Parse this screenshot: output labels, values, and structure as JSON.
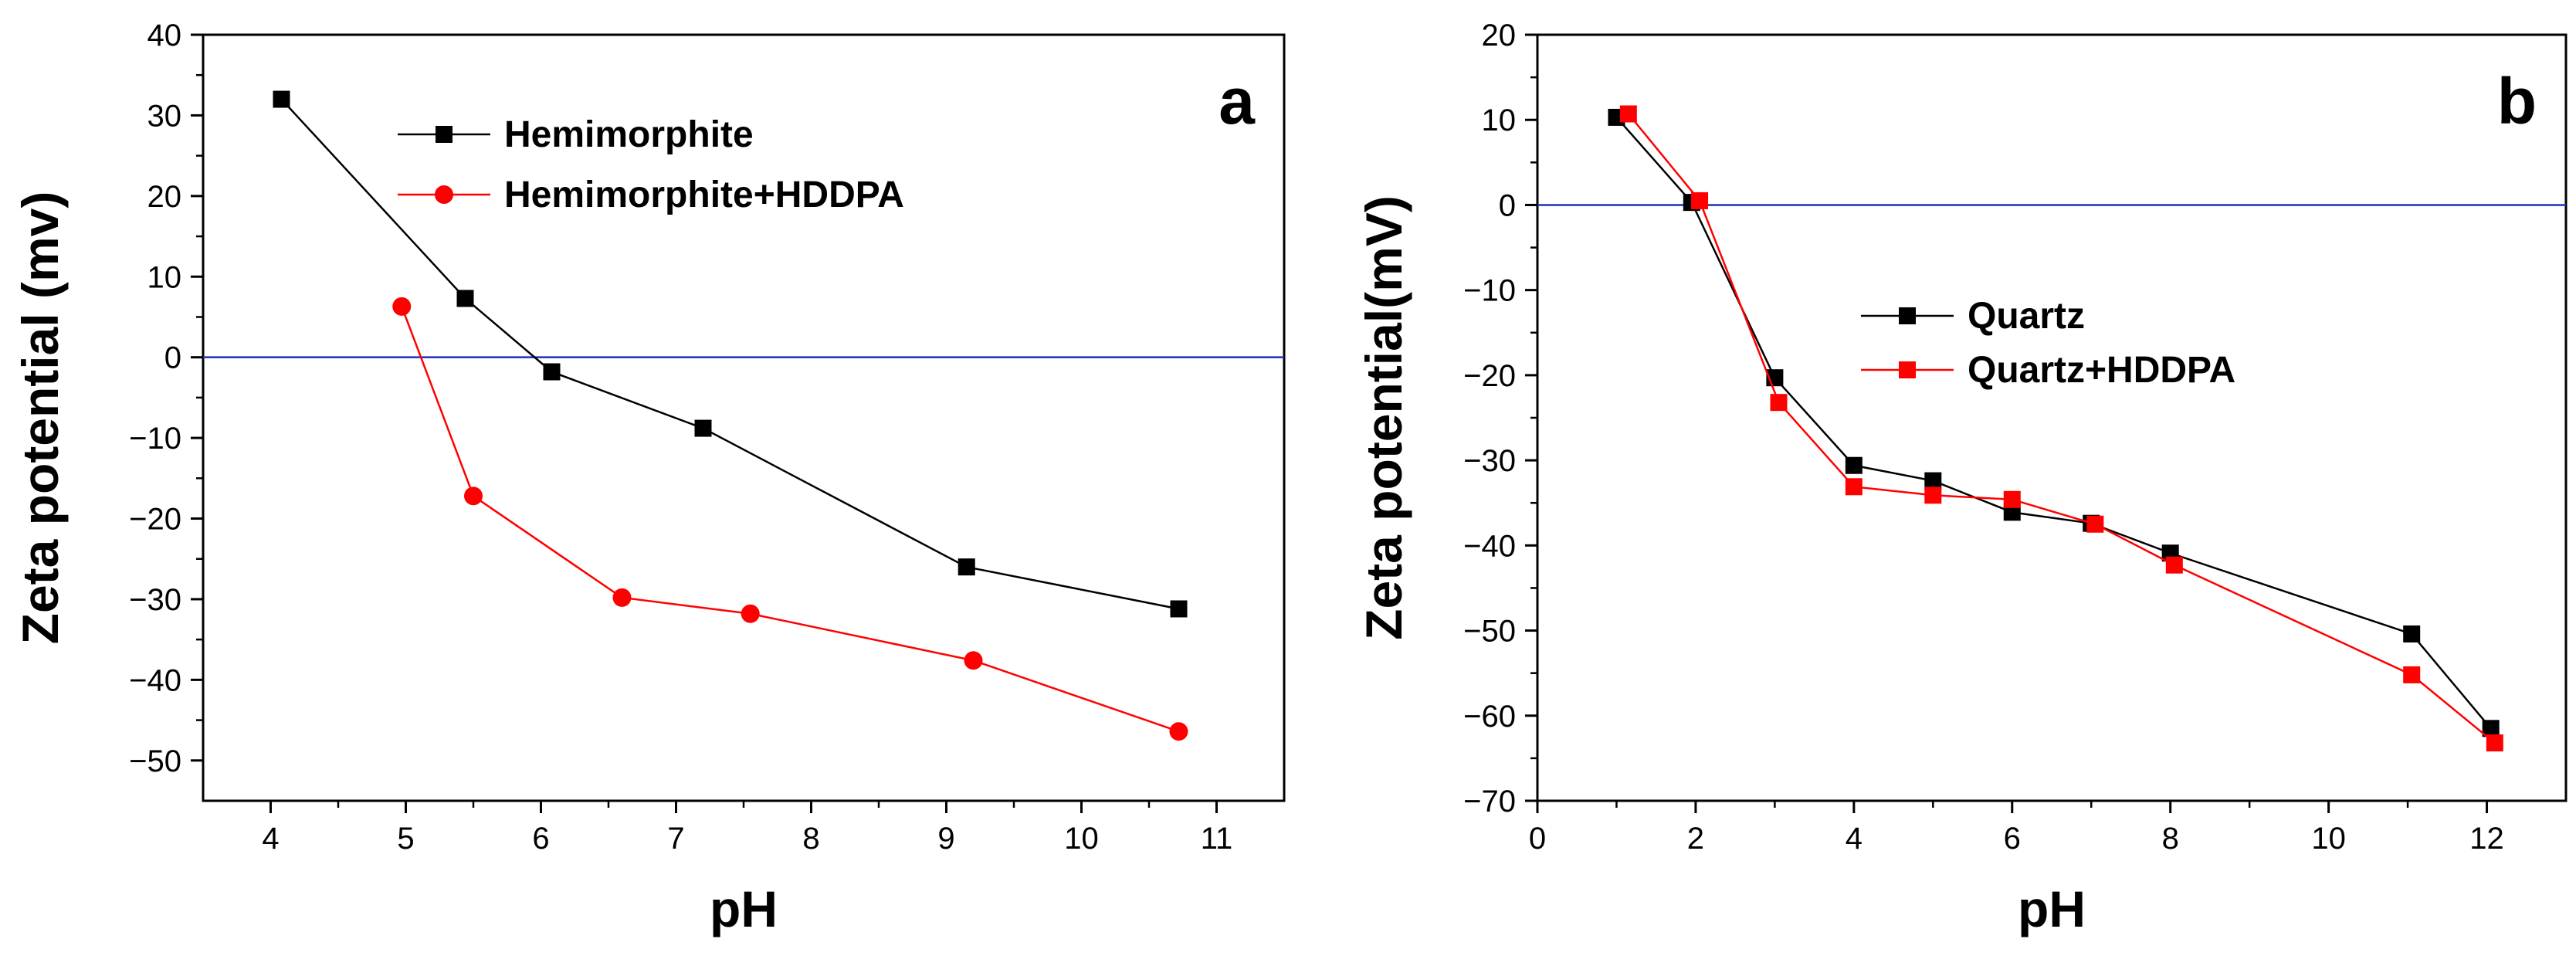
{
  "chart_data": [
    {
      "type": "line",
      "panel_label": "a",
      "xlabel": "pH",
      "ylabel": "Zeta potential (mv)",
      "xlim": [
        3.5,
        11.5
      ],
      "ylim": [
        -55,
        40
      ],
      "xticks": [
        4,
        5,
        6,
        7,
        8,
        9,
        10,
        11
      ],
      "yticks": [
        40,
        30,
        20,
        10,
        0,
        -10,
        -20,
        -30,
        -40,
        -50
      ],
      "reference_line": {
        "y": 0,
        "color": "#1f2fbf"
      },
      "legend_position": "top-center",
      "grid": false,
      "series": [
        {
          "name": "Hemimorphite",
          "color": "#000000",
          "marker": "square",
          "x": [
            4.08,
            5.44,
            6.08,
            7.2,
            9.15,
            10.72
          ],
          "y": [
            32,
            7.3,
            -1.8,
            -8.8,
            -26,
            -31.2
          ]
        },
        {
          "name": "Hemimorphite+HDDPA",
          "color": "#ff0000",
          "marker": "circle",
          "x": [
            4.97,
            5.5,
            6.6,
            7.55,
            9.2,
            10.72
          ],
          "y": [
            6.3,
            -17.2,
            -29.8,
            -31.8,
            -37.6,
            -46.4
          ]
        }
      ]
    },
    {
      "type": "line",
      "panel_label": "b",
      "xlabel": "pH",
      "ylabel": "Zeta potential(mV)",
      "xlim": [
        0,
        13
      ],
      "ylim": [
        -70,
        20
      ],
      "xticks": [
        0,
        2,
        4,
        6,
        8,
        10,
        12
      ],
      "yticks": [
        20,
        10,
        0,
        -10,
        -20,
        -30,
        -40,
        -50,
        -60,
        -70
      ],
      "reference_line": {
        "y": 0,
        "color": "#1f2fbf"
      },
      "legend_position": "center-right",
      "grid": false,
      "series": [
        {
          "name": "Quartz",
          "color": "#000000",
          "marker": "square",
          "x": [
            1.0,
            1.95,
            3.0,
            4.0,
            5.0,
            6.0,
            7.0,
            8.0,
            11.05,
            12.05
          ],
          "y": [
            10.3,
            0.3,
            -20.3,
            -30.6,
            -32.4,
            -36.1,
            -37.4,
            -40.9,
            -50.4,
            -61.5
          ]
        },
        {
          "name": "Quartz+HDDPA",
          "color": "#ff0000",
          "marker": "square",
          "x": [
            1.15,
            2.05,
            3.05,
            4.0,
            5.0,
            6.0,
            7.05,
            8.05,
            11.05,
            12.1
          ],
          "y": [
            10.7,
            0.5,
            -23.2,
            -33.1,
            -34.1,
            -34.6,
            -37.5,
            -42.3,
            -55.2,
            -63.2
          ]
        }
      ]
    }
  ]
}
